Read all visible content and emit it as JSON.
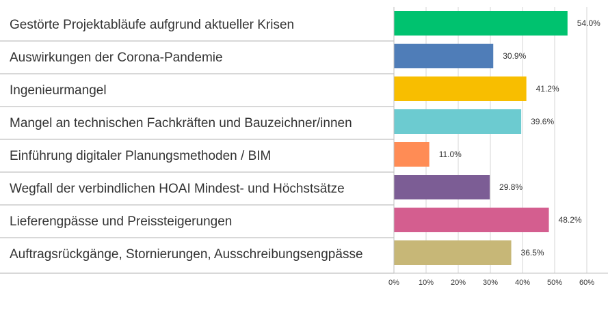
{
  "chart_data": {
    "type": "bar",
    "orientation": "horizontal",
    "categories": [
      "Gestörte Projektabläufe aufgrund aktueller Krisen",
      "Auswirkungen der Corona-Pandemie",
      "Ingenieurmangel",
      "Mangel an technischen Fachkräften und Bauzeichner/innen",
      "Einführung digitaler Planungsmethoden / BIM",
      "Wegfall der verbindlichen HOAI Mindest- und Höchstsätze",
      "Lieferengpässe und Preissteigerungen",
      "Auftragsrückgänge, Stornierungen, Ausschreibungsengpässe"
    ],
    "values": [
      54.0,
      30.9,
      41.2,
      39.6,
      11.0,
      29.8,
      48.2,
      36.5
    ],
    "value_labels": [
      "54.0%",
      "30.9%",
      "41.2%",
      "39.6%",
      "11.0%",
      "29.8%",
      "48.2%",
      "36.5%"
    ],
    "colors": [
      "#00c26f",
      "#4f7db8",
      "#f8be00",
      "#6ccbd0",
      "#ff8c55",
      "#7c5d95",
      "#d45e8f",
      "#c7b777"
    ],
    "xlim": [
      0,
      60
    ],
    "x_ticks": [
      0,
      10,
      20,
      30,
      40,
      50,
      60
    ],
    "x_tick_labels": [
      "0%",
      "10%",
      "20%",
      "30%",
      "40%",
      "50%",
      "60%"
    ],
    "grid": true,
    "title": "",
    "xlabel": "",
    "ylabel": ""
  }
}
